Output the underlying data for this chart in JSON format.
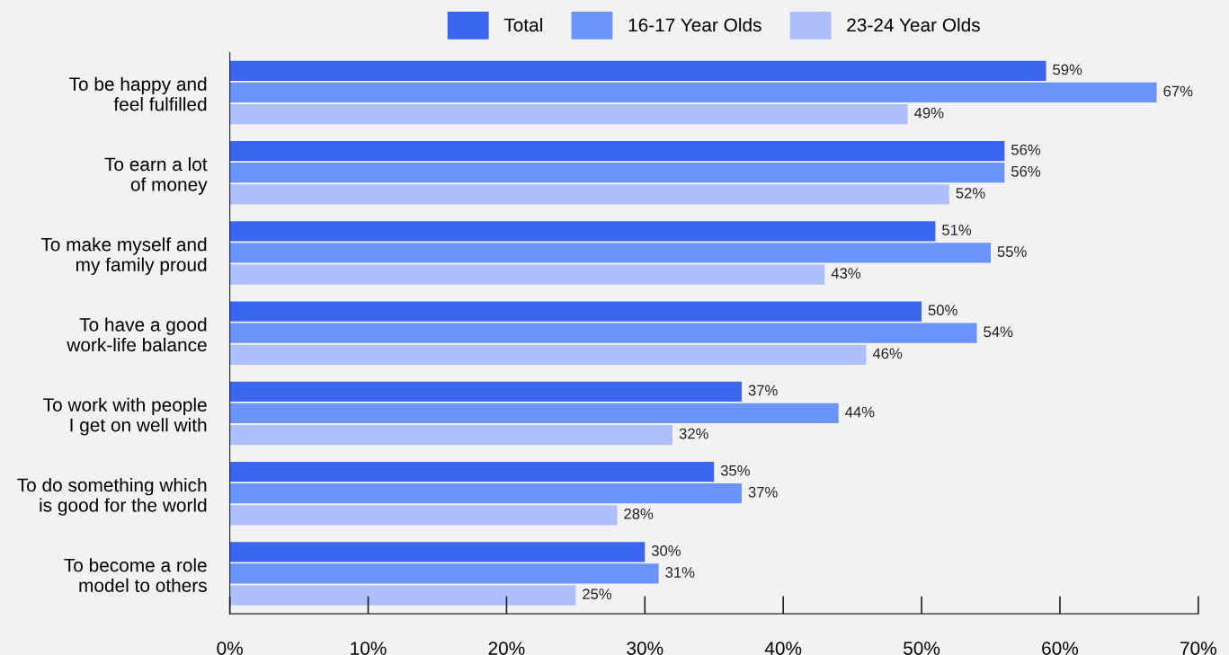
{
  "chart_data": {
    "type": "bar",
    "orientation": "horizontal",
    "categories": [
      "To be happy and\nfeel fulfilled",
      "To earn a lot\nof money",
      "To make myself and\nmy family proud",
      "To have a good\nwork-life balance",
      "To work with people\nI get on well with",
      "To do something which\nis good for the world",
      "To become a role\nmodel to others"
    ],
    "series": [
      {
        "name": "Total",
        "color": "#3a66f0",
        "values": [
          59,
          56,
          51,
          50,
          37,
          35,
          30
        ],
        "value_labels": [
          "59%",
          "56%",
          "51%",
          "50%",
          "37%",
          "35%",
          "30%"
        ]
      },
      {
        "name": "16-17 Year Olds",
        "color": "#6b94fa",
        "values": [
          67,
          56,
          55,
          54,
          44,
          37,
          31
        ],
        "value_labels": [
          "67%",
          "56%",
          "55%",
          "54%",
          "44%",
          "37%",
          "31%"
        ]
      },
      {
        "name": "23-24 Year Olds",
        "color": "#adc0fc",
        "values": [
          49,
          52,
          43,
          46,
          32,
          28,
          25
        ],
        "value_labels": [
          "49%",
          "52%",
          "43%",
          "46%",
          "32%",
          "28%",
          "25%"
        ]
      }
    ],
    "xlim": [
      0,
      70
    ],
    "xticks": [
      {
        "value": 0,
        "label": "0%"
      },
      {
        "value": 10,
        "label": "10%"
      },
      {
        "value": 20,
        "label": "20%"
      },
      {
        "value": 30,
        "label": "30%"
      },
      {
        "value": 40,
        "label": "40%"
      },
      {
        "value": 50,
        "label": "50%"
      },
      {
        "value": 60,
        "label": "60%"
      },
      {
        "value": 70,
        "label": "70%"
      }
    ],
    "grid": false,
    "legend": "top"
  }
}
